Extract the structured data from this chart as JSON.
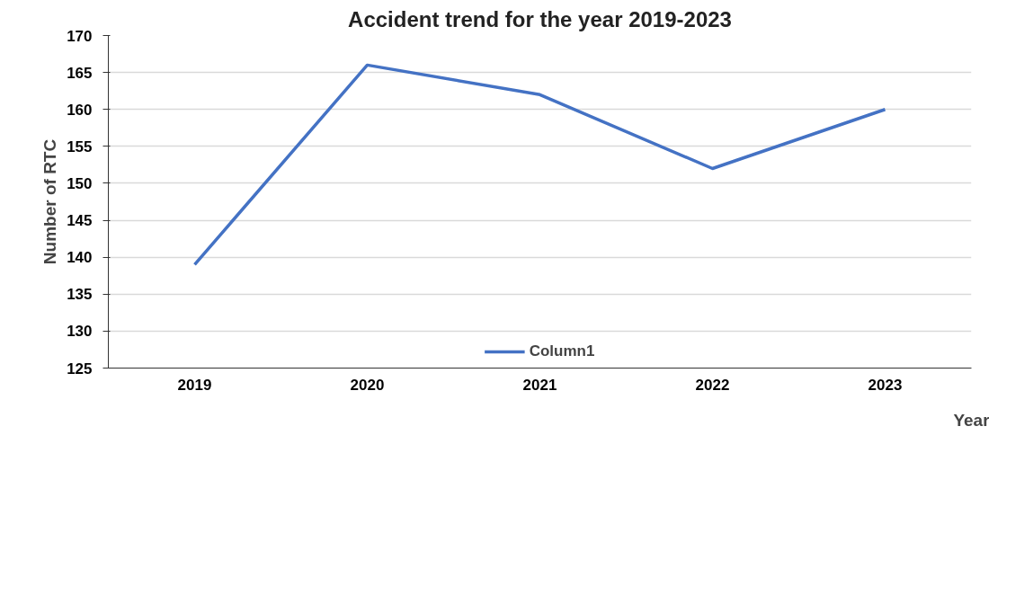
{
  "chart_data": {
    "type": "line",
    "title": "Accident trend for the year 2019-2023",
    "xlabel": "Year",
    "ylabel": "Number of RTC",
    "categories": [
      "2019",
      "2020",
      "2021",
      "2022",
      "2023"
    ],
    "series": [
      {
        "name": "Column1",
        "color": "#4472c4",
        "values": [
          139,
          166,
          162,
          152,
          160
        ]
      }
    ],
    "ylim": [
      125,
      170
    ],
    "yticks": [
      125,
      130,
      135,
      140,
      145,
      150,
      155,
      160,
      165,
      170
    ],
    "grid": "y",
    "legend": "bottom",
    "marker": "none",
    "line_style": "solid"
  }
}
